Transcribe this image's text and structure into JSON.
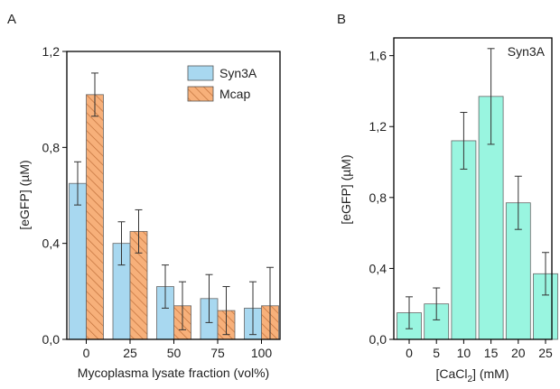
{
  "chart_data": [
    {
      "panel_label": "A",
      "type": "bar",
      "categories": [
        "0",
        "25",
        "50",
        "75",
        "100"
      ],
      "series": [
        {
          "name": "Syn3A",
          "values": [
            0.65,
            0.4,
            0.22,
            0.17,
            0.13
          ],
          "errors": [
            0.09,
            0.09,
            0.09,
            0.1,
            0.11
          ],
          "color": "#a8d8f0",
          "hatch": false
        },
        {
          "name": "Mcap",
          "values": [
            1.02,
            0.45,
            0.14,
            0.12,
            0.14
          ],
          "errors": [
            0.09,
            0.09,
            0.1,
            0.1,
            0.16
          ],
          "color": "#f7b07a",
          "hatch": true
        }
      ],
      "xlabel": "Mycoplasma lysate fraction (vol%)",
      "ylabel": "[eGFP] (µM)",
      "ylim": [
        0,
        1.2
      ],
      "yticks": [
        0,
        0.4,
        0.8,
        1.2
      ],
      "ytick_labels": [
        "0,0",
        "0,4",
        "0,8",
        "1,2"
      ],
      "legend_position": "top-right"
    },
    {
      "panel_label": "B",
      "type": "bar",
      "categories": [
        "0",
        "5",
        "10",
        "15",
        "20",
        "25"
      ],
      "series": [
        {
          "values": [
            0.15,
            0.2,
            1.12,
            1.37,
            0.77,
            0.37
          ],
          "errors": [
            0.09,
            0.09,
            0.16,
            0.27,
            0.15,
            0.12
          ],
          "color": "#99f5e0"
        }
      ],
      "annotation": "Syn3A",
      "xlabel_main": "[CaCl",
      "xlabel_sub": "2",
      "xlabel_tail": "] (mM)",
      "ylabel": "[eGFP] (µM)",
      "ylim": [
        0,
        1.7
      ],
      "yticks": [
        0,
        0.4,
        0.8,
        1.2,
        1.6
      ],
      "ytick_labels": [
        "0,0",
        "0,4",
        "0,8",
        "1,2",
        "1,6"
      ]
    }
  ]
}
